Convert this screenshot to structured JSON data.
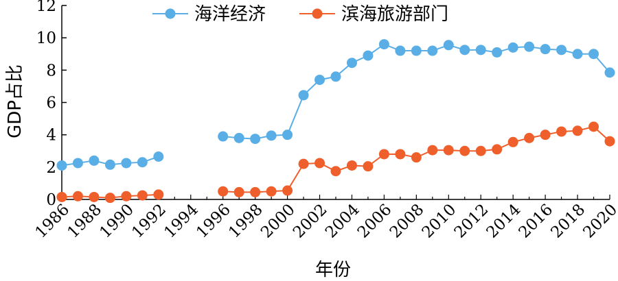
{
  "chart_data": {
    "type": "line",
    "title": "",
    "xlabel": "年份",
    "ylabel": "GDP占比",
    "xlim": [
      1986,
      2020
    ],
    "ylim": [
      0,
      12
    ],
    "grid": false,
    "legend_position": "top",
    "x_ticks": [
      "1986",
      "1988",
      "1990",
      "1992",
      "1994",
      "1996",
      "1998",
      "2000",
      "2002",
      "2004",
      "2006",
      "2008",
      "2010",
      "2012",
      "2014",
      "2016",
      "2018",
      "2020"
    ],
    "y_ticks": [
      "0",
      "2",
      "4",
      "6",
      "8",
      "10",
      "12"
    ],
    "series": [
      {
        "name": "海洋经济",
        "color": "#5aaee6",
        "segments": [
          {
            "x": [
              1986,
              1987,
              1988,
              1989,
              1990,
              1991,
              1992
            ],
            "y": [
              2.1,
              2.25,
              2.4,
              2.15,
              2.25,
              2.3,
              2.65
            ]
          },
          {
            "x": [
              1996,
              1997,
              1998,
              1999,
              2000,
              2001,
              2002,
              2003,
              2004,
              2005,
              2006,
              2007,
              2008,
              2009,
              2010,
              2011,
              2012,
              2013,
              2014,
              2015,
              2016,
              2017,
              2018,
              2019,
              2020
            ],
            "y": [
              3.9,
              3.8,
              3.75,
              3.95,
              4.0,
              6.45,
              7.4,
              7.6,
              8.45,
              8.9,
              9.6,
              9.2,
              9.2,
              9.2,
              9.55,
              9.25,
              9.25,
              9.1,
              9.4,
              9.45,
              9.3,
              9.25,
              9.0,
              9.0,
              7.85
            ]
          }
        ]
      },
      {
        "name": "滨海旅游部门",
        "color": "#ef5f2c",
        "segments": [
          {
            "x": [
              1986,
              1987,
              1988,
              1989,
              1990,
              1991,
              1992
            ],
            "y": [
              0.15,
              0.2,
              0.15,
              0.1,
              0.2,
              0.25,
              0.3
            ]
          },
          {
            "x": [
              1996,
              1997,
              1998,
              1999,
              2000,
              2001,
              2002,
              2003,
              2004,
              2005,
              2006,
              2007,
              2008,
              2009,
              2010,
              2011,
              2012,
              2013,
              2014,
              2015,
              2016,
              2017,
              2018,
              2019,
              2020
            ],
            "y": [
              0.5,
              0.45,
              0.45,
              0.5,
              0.55,
              2.2,
              2.25,
              1.75,
              2.1,
              2.05,
              2.8,
              2.8,
              2.6,
              3.05,
              3.05,
              3.0,
              3.0,
              3.1,
              3.55,
              3.8,
              4.0,
              4.2,
              4.25,
              4.5,
              3.6
            ]
          }
        ]
      }
    ]
  }
}
